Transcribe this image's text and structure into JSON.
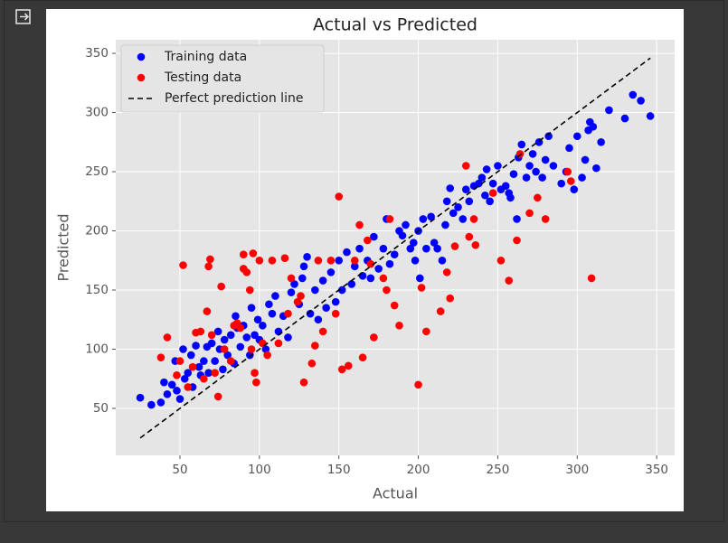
{
  "chart_data": {
    "type": "scatter",
    "title": "Actual vs Predicted",
    "x_label": "Actual",
    "y_label": "Predicted",
    "xlim": [
      9.6,
      361.3
    ],
    "ylim": [
      10.3,
      361.5
    ],
    "xticks": [
      50,
      100,
      150,
      200,
      250,
      300,
      350
    ],
    "yticks": [
      50,
      100,
      150,
      200,
      250,
      300,
      350
    ],
    "grid": true,
    "legend": "upper left",
    "series": [
      {
        "name": "Training data",
        "color": "#0000ff",
        "kind": "scatter",
        "x": [
          25,
          32,
          38,
          40,
          42,
          45,
          47,
          48,
          50,
          52,
          53,
          55,
          57,
          58,
          60,
          62,
          63,
          65,
          67,
          68,
          70,
          72,
          74,
          75,
          77,
          78,
          80,
          82,
          84,
          85,
          86,
          88,
          90,
          92,
          94,
          95,
          97,
          99,
          100,
          102,
          104,
          106,
          108,
          110,
          112,
          115,
          118,
          120,
          122,
          125,
          127,
          128,
          130,
          132,
          135,
          137,
          140,
          142,
          145,
          148,
          150,
          152,
          155,
          158,
          160,
          163,
          165,
          168,
          170,
          172,
          175,
          178,
          180,
          182,
          185,
          188,
          190,
          192,
          195,
          197,
          198,
          200,
          201,
          203,
          205,
          208,
          210,
          212,
          215,
          217,
          218,
          220,
          222,
          225,
          228,
          230,
          232,
          235,
          238,
          240,
          242,
          243,
          245,
          247,
          250,
          252,
          255,
          257,
          258,
          260,
          262,
          263,
          265,
          268,
          270,
          272,
          274,
          276,
          278,
          280,
          282,
          285,
          290,
          293,
          295,
          298,
          300,
          303,
          305,
          307,
          308,
          310,
          312,
          315,
          320,
          330,
          335,
          340,
          346
        ],
        "values": [
          59,
          53,
          55,
          72,
          62,
          70,
          90,
          65,
          58,
          100,
          75,
          80,
          95,
          68,
          103,
          85,
          78,
          90,
          102,
          80,
          105,
          90,
          115,
          100,
          83,
          108,
          95,
          112,
          88,
          128,
          118,
          102,
          120,
          110,
          95,
          135,
          112,
          125,
          108,
          120,
          100,
          138,
          130,
          145,
          115,
          128,
          110,
          148,
          155,
          138,
          160,
          170,
          178,
          130,
          150,
          125,
          158,
          135,
          165,
          140,
          175,
          150,
          182,
          155,
          170,
          185,
          162,
          175,
          160,
          195,
          168,
          185,
          210,
          172,
          180,
          200,
          196,
          205,
          185,
          190,
          175,
          200,
          160,
          210,
          185,
          212,
          190,
          185,
          175,
          205,
          225,
          236,
          215,
          220,
          210,
          235,
          225,
          238,
          240,
          245,
          230,
          252,
          225,
          240,
          255,
          235,
          238,
          232,
          228,
          248,
          210,
          262,
          273,
          245,
          255,
          265,
          250,
          275,
          245,
          260,
          280,
          255,
          240,
          250,
          270,
          235,
          280,
          245,
          260,
          285,
          292,
          288,
          253,
          275,
          302,
          295,
          315,
          310,
          297
        ]
      },
      {
        "name": "Testing data",
        "color": "#ff0000",
        "kind": "scatter",
        "x": [
          38,
          42,
          48,
          50,
          52,
          55,
          58,
          60,
          63,
          65,
          67,
          68,
          69,
          70,
          72,
          74,
          76,
          78,
          82,
          84,
          86,
          88,
          90,
          90,
          92,
          94,
          95,
          96,
          97,
          98,
          100,
          102,
          105,
          108,
          112,
          116,
          118,
          120,
          124,
          126,
          128,
          133,
          135,
          137,
          140,
          145,
          148,
          150,
          152,
          156,
          160,
          163,
          165,
          168,
          170,
          172,
          178,
          180,
          182,
          185,
          188,
          200,
          202,
          205,
          214,
          218,
          220,
          223,
          230,
          232,
          235,
          236,
          247,
          252,
          257,
          262,
          264,
          270,
          275,
          280,
          294,
          296,
          309
        ],
        "values": [
          93,
          110,
          78,
          90,
          171,
          68,
          85,
          114,
          115,
          75,
          132,
          170,
          176,
          112,
          80,
          60,
          153,
          100,
          90,
          120,
          122,
          118,
          168,
          180,
          165,
          150,
          100,
          181,
          80,
          72,
          175,
          105,
          95,
          175,
          105,
          177,
          130,
          160,
          140,
          145,
          72,
          88,
          103,
          175,
          115,
          175,
          130,
          229,
          83,
          86,
          175,
          205,
          93,
          192,
          172,
          110,
          160,
          150,
          210,
          137,
          120,
          70,
          152,
          115,
          132,
          165,
          143,
          187,
          255,
          195,
          210,
          188,
          232,
          175,
          158,
          192,
          265,
          215,
          228,
          210,
          250,
          242,
          160
        ]
      },
      {
        "name": "Perfect prediction line",
        "color": "#000000",
        "kind": "line",
        "dashed": true,
        "x": [
          25,
          346
        ],
        "values": [
          25,
          346
        ]
      }
    ]
  }
}
